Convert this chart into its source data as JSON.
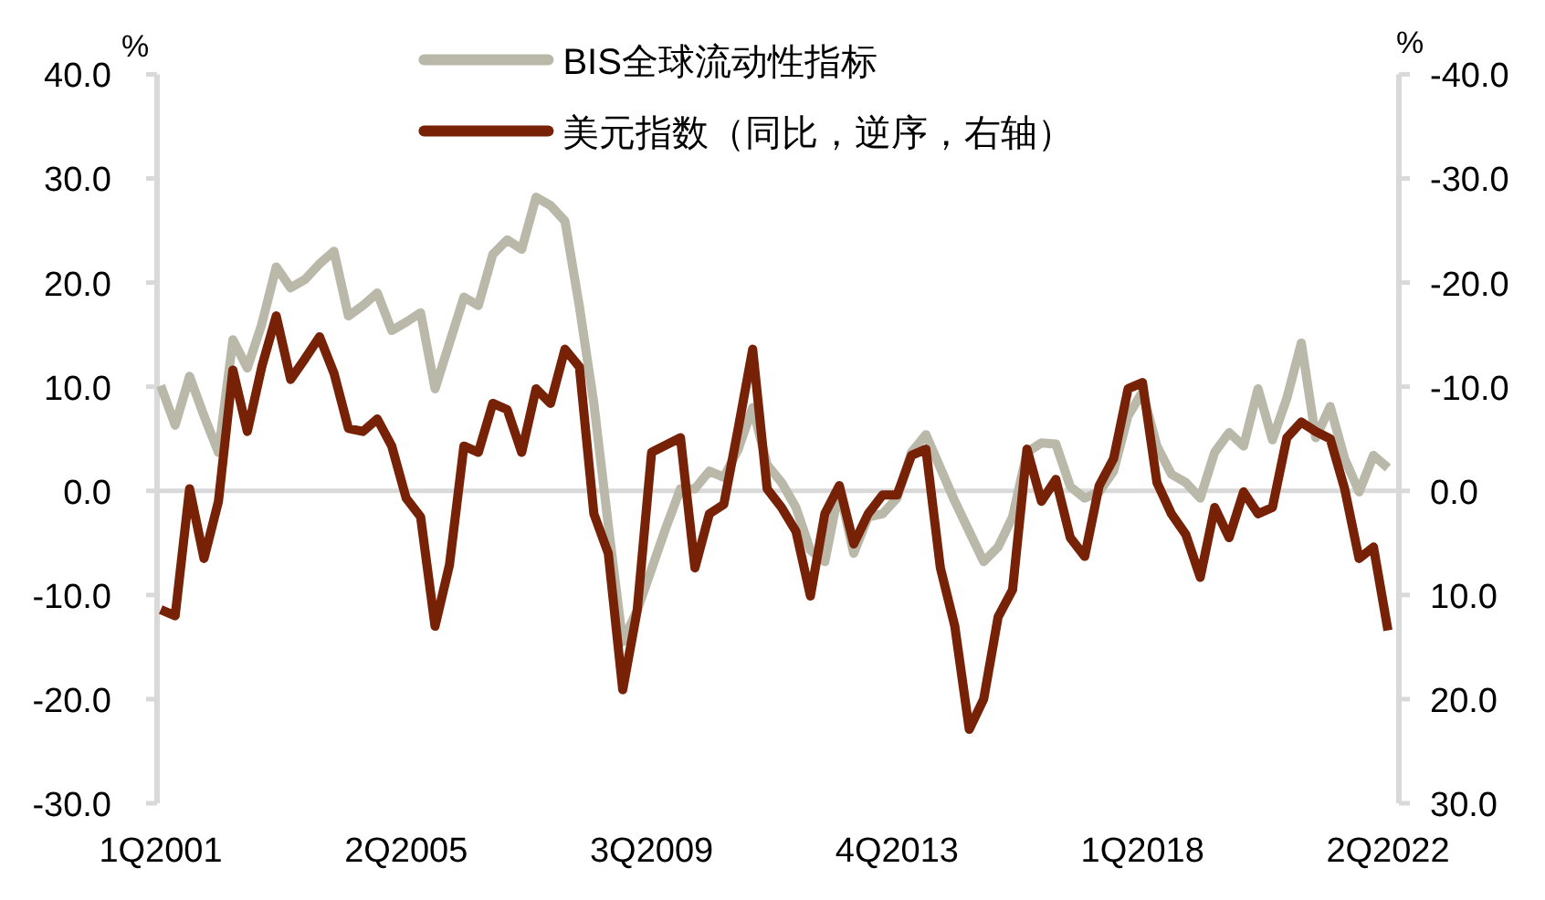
{
  "chart_data": {
    "type": "line",
    "categories": [
      "1Q2001",
      null,
      null,
      null,
      null,
      null,
      null,
      null,
      null,
      null,
      null,
      null,
      null,
      null,
      null,
      null,
      null,
      "2Q2005",
      null,
      null,
      null,
      null,
      null,
      null,
      null,
      null,
      null,
      null,
      null,
      null,
      null,
      null,
      null,
      null,
      "3Q2009",
      null,
      null,
      null,
      null,
      null,
      null,
      null,
      null,
      null,
      null,
      null,
      null,
      null,
      null,
      null,
      null,
      "4Q2013",
      null,
      null,
      null,
      null,
      null,
      null,
      null,
      null,
      null,
      null,
      null,
      null,
      null,
      null,
      null,
      null,
      "1Q2018",
      null,
      null,
      null,
      null,
      null,
      null,
      null,
      null,
      null,
      null,
      null,
      null,
      null,
      null,
      null,
      null,
      "2Q2022"
    ],
    "ylabel": "%",
    "y2label": "%",
    "ylim": [
      -30,
      40
    ],
    "yticks": [
      {
        "value": -30,
        "label": "-30.0"
      },
      {
        "value": -20,
        "label": "-20.0"
      },
      {
        "value": -10,
        "label": "-10.0"
      },
      {
        "value": 0,
        "label": "0.0"
      },
      {
        "value": 10,
        "label": "10.0"
      },
      {
        "value": 20,
        "label": "20.0"
      },
      {
        "value": 30,
        "label": "30.0"
      },
      {
        "value": 40,
        "label": "40.0"
      }
    ],
    "y2lim": [
      30,
      -40
    ],
    "y2ticks": [
      {
        "value": -40,
        "label": "-40.0"
      },
      {
        "value": -30,
        "label": "-30.0"
      },
      {
        "value": -20,
        "label": "-20.0"
      },
      {
        "value": -10,
        "label": "-10.0"
      },
      {
        "value": 0,
        "label": "0.0"
      },
      {
        "value": 10,
        "label": "10.0"
      },
      {
        "value": 20,
        "label": "20.0"
      },
      {
        "value": 30,
        "label": "30.0"
      }
    ],
    "legend": "top",
    "series": [
      {
        "name": "BIS全球流动性指标",
        "color": "#bab9a9",
        "values": [
          10.1,
          6.3,
          11.0,
          7.2,
          3.7,
          14.5,
          11.8,
          16.0,
          21.5,
          19.5,
          20.3,
          21.8,
          23.0,
          16.8,
          17.8,
          19.0,
          15.4,
          16.2,
          17.1,
          9.8,
          14.2,
          18.6,
          17.8,
          22.7,
          24.1,
          23.2,
          28.2,
          27.4,
          25.9,
          17.7,
          8.4,
          -3.3,
          -14.5,
          -11.5,
          -7.5,
          -3.5,
          0.2,
          0.2,
          1.9,
          1.3,
          4.0,
          8.0,
          2.5,
          0.8,
          -1.6,
          -5.7,
          -6.8,
          0.2,
          -6.0,
          -2.5,
          -2.2,
          -0.7,
          3.7,
          5.4,
          2.2,
          -1.0,
          -3.9,
          -6.8,
          -5.4,
          -2.5,
          3.7,
          4.6,
          4.5,
          0.4,
          -0.7,
          -0.1,
          1.9,
          7.2,
          9.5,
          4.3,
          1.6,
          0.8,
          -0.7,
          3.7,
          5.6,
          4.3,
          9.8,
          4.9,
          8.9,
          14.2,
          5.1,
          8.1,
          3.1,
          -0.1,
          3.4,
          2.2
        ]
      },
      {
        "name": "美元指数（同比，逆序，右轴）",
        "color": "#772106",
        "axis": "y2",
        "values": [
          11.4,
          12.0,
          -0.2,
          6.5,
          1.0,
          -11.6,
          -5.7,
          -11.9,
          -16.8,
          -10.7,
          -12.7,
          -14.8,
          -11.3,
          -6.0,
          -5.7,
          -6.9,
          -4.3,
          0.7,
          2.5,
          13.0,
          7.1,
          -4.3,
          -3.7,
          -8.4,
          -7.8,
          -3.7,
          -9.8,
          -8.4,
          -13.6,
          -11.9,
          2.2,
          6.0,
          19.1,
          11.5,
          -3.7,
          -4.4,
          -5.1,
          7.4,
          2.2,
          1.3,
          -6.0,
          -13.6,
          -0.2,
          1.6,
          3.9,
          10.1,
          2.2,
          -0.5,
          5.1,
          2.2,
          0.4,
          0.4,
          -3.4,
          -4.0,
          7.4,
          13.0,
          22.9,
          20.0,
          12.1,
          9.5,
          -4.0,
          1.0,
          -1.1,
          4.5,
          6.3,
          -0.5,
          -3.1,
          -9.8,
          -10.4,
          -0.8,
          2.2,
          4.2,
          8.3,
          1.6,
          4.5,
          0.1,
          2.2,
          1.6,
          -5.1,
          -6.6,
          -5.7,
          -5.0,
          -0.2,
          6.5,
          5.4,
          13.4
        ]
      }
    ]
  }
}
